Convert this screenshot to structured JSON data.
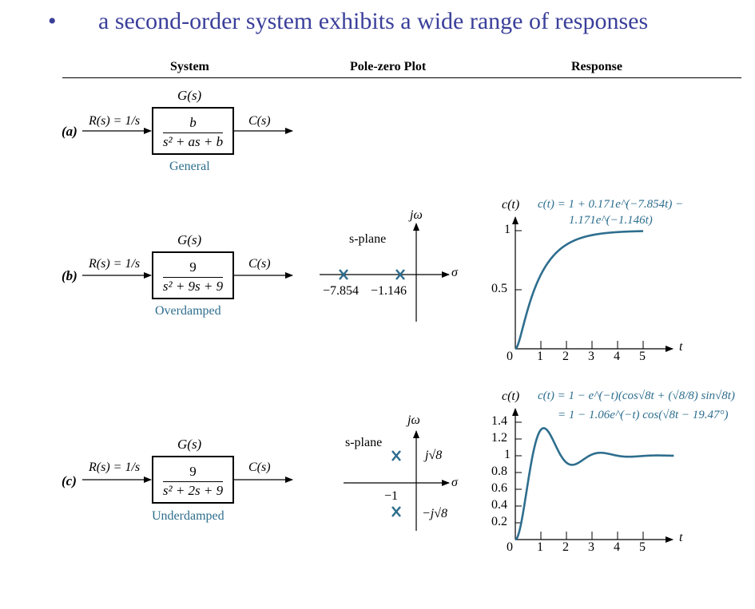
{
  "title": {
    "bullet": "•",
    "text": "a second-order system exhibits a wide range of responses"
  },
  "columns": {
    "system": "System",
    "pole_zero": "Pole-zero Plot",
    "response": "Response"
  },
  "rows": [
    {
      "id": "a",
      "label": "(a)",
      "input": "R(s) = 1/s",
      "gs": "G(s)",
      "numerator": "b",
      "denominator": "s² + as + b",
      "output": "C(s)",
      "caption": "General"
    },
    {
      "id": "b",
      "label": "(b)",
      "input": "R(s) = 1/s",
      "gs": "G(s)",
      "numerator": "9",
      "denominator": "s² + 9s + 9",
      "output": "C(s)",
      "caption": "Overdamped",
      "pole_zero": {
        "jw": "jω",
        "plane": "s-plane",
        "sigma": "σ",
        "poles": [
          "−7.854",
          "−1.146"
        ]
      },
      "response": {
        "ylabel": "c(t)",
        "eq_line1": "c(t) = 1 + 0.171e^(−7.854t) −",
        "eq_line2": "1.171e^(−1.146t)",
        "xlabel": "t",
        "x_ticks": [
          "0",
          "1",
          "2",
          "3",
          "4",
          "5"
        ],
        "y_ticks": [
          "0.5",
          "1"
        ]
      }
    },
    {
      "id": "c",
      "label": "(c)",
      "input": "R(s) = 1/s",
      "gs": "G(s)",
      "numerator": "9",
      "denominator": "s² + 2s + 9",
      "output": "C(s)",
      "caption": "Underdamped",
      "pole_zero": {
        "jw": "jω",
        "plane": "s-plane",
        "sigma": "σ",
        "pos_imag": "j√8",
        "neg_imag": "−j√8",
        "real": "−1"
      },
      "response": {
        "ylabel": "c(t)",
        "eq_line1": "c(t) = 1 − e^(−t)(cos√8t + (√8/8) sin√8t)",
        "eq_line2": "= 1 − 1.06e^(−t) cos(√8t − 19.47°)",
        "xlabel": "t",
        "x_ticks": [
          "0",
          "1",
          "2",
          "3",
          "4",
          "5"
        ],
        "y_ticks": [
          "0.2",
          "0.4",
          "0.6",
          "0.8",
          "1",
          "1.2",
          "1.4"
        ]
      }
    }
  ],
  "colors": {
    "title": "#3a3f9a",
    "accent": "#2e6e8e"
  }
}
